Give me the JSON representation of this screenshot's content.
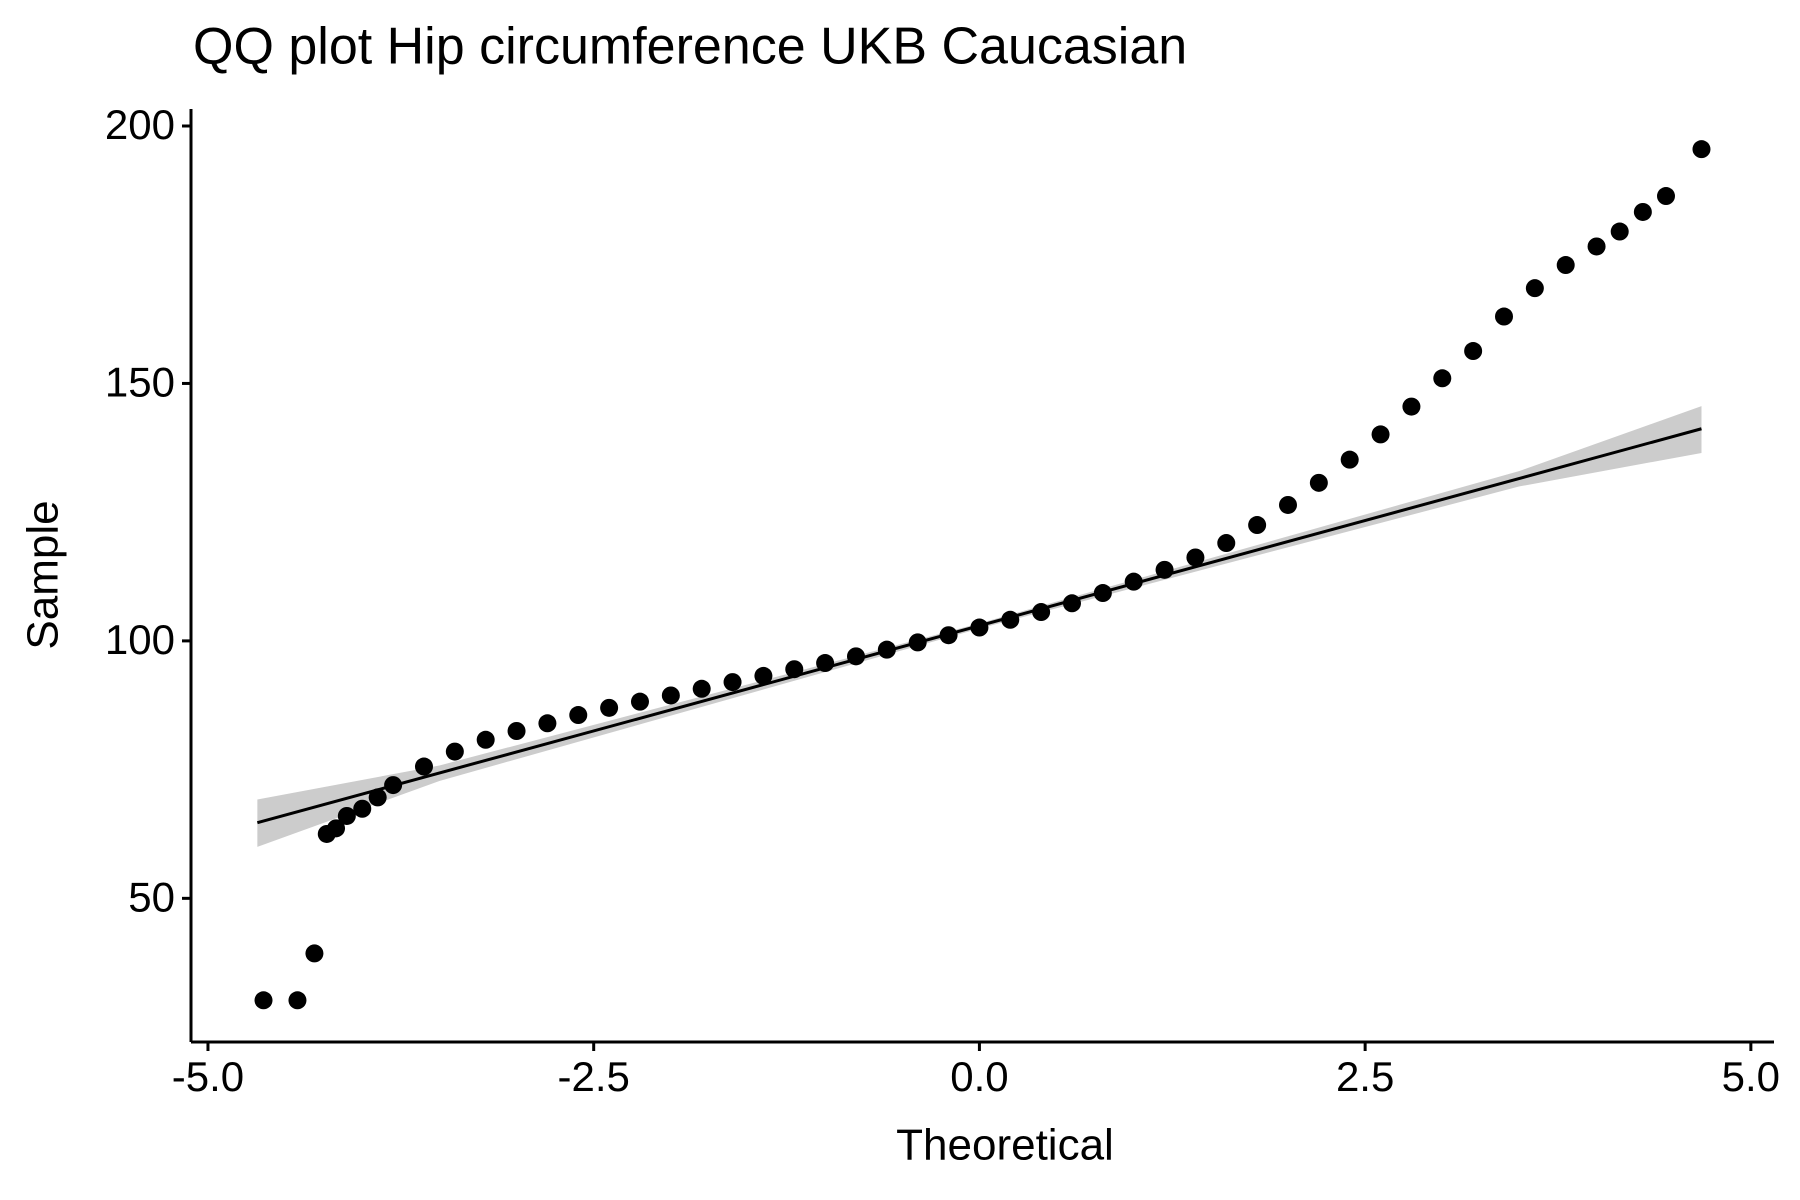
{
  "chart_data": {
    "type": "scatter",
    "title": "QQ plot Hip circumference UKB Caucasian",
    "x_label": "Theoretical",
    "y_label": "Sample",
    "x": [
      -4.64,
      -4.42,
      -4.31,
      -4.23,
      -4.17,
      -4.1,
      -4.0,
      -3.9,
      -3.8,
      -3.6,
      -3.4,
      -3.2,
      -3.0,
      -2.8,
      -2.6,
      -2.4,
      -2.2,
      -2.0,
      -1.8,
      -1.6,
      -1.4,
      -1.2,
      -1.0,
      -0.8,
      -0.6,
      -0.4,
      -0.2,
      0,
      0.2,
      0.4,
      0.6,
      0.8,
      1.0,
      1.2,
      1.4,
      1.6,
      1.8,
      2.0,
      2.2,
      2.4,
      2.6,
      2.8,
      3.0,
      3.2,
      3.4,
      3.6,
      3.8,
      4.0,
      4.15,
      4.3,
      4.45,
      4.68
    ],
    "y": [
      30.2,
      30.2,
      39.3,
      62.5,
      63.6,
      66,
      67.4,
      69.6,
      72,
      75.6,
      78.5,
      80.8,
      82.5,
      84,
      85.6,
      87,
      88.2,
      89.4,
      90.7,
      92,
      93.2,
      94.5,
      95.7,
      97,
      98.3,
      99.7,
      101.1,
      102.6,
      104.1,
      105.6,
      107.3,
      109.3,
      111.5,
      113.8,
      116.2,
      119,
      122.5,
      126.4,
      130.7,
      135.2,
      140.1,
      145.5,
      151,
      156.3,
      163,
      168.5,
      173,
      176.6,
      179.5,
      183.3,
      186.4,
      195.5
    ],
    "color": "#000000",
    "reference_line": {
      "x": [
        -4.68,
        4.68
      ],
      "y": [
        64.7,
        141.2
      ],
      "color": "#000000"
    },
    "band": {
      "x": [
        -4.68,
        -3.5,
        0,
        3.5,
        4.68
      ],
      "lower": [
        60.0,
        72.8,
        102.4,
        130.0,
        136.5
      ],
      "upper": [
        69.2,
        75.8,
        103.4,
        133.0,
        145.6
      ],
      "color": "#cccccc"
    },
    "xlim": [
      -5.11,
      5.15
    ],
    "ylim": [
      22.1,
      203.3
    ],
    "xticks": [
      {
        "value": -5,
        "label": "-5.0"
      },
      -2.5,
      {
        "value": 0,
        "label": "0.0"
      },
      2.5,
      {
        "value": 5,
        "label": "5.0"
      }
    ],
    "yticks": [
      50,
      100,
      150,
      200
    ],
    "grid": false
  }
}
